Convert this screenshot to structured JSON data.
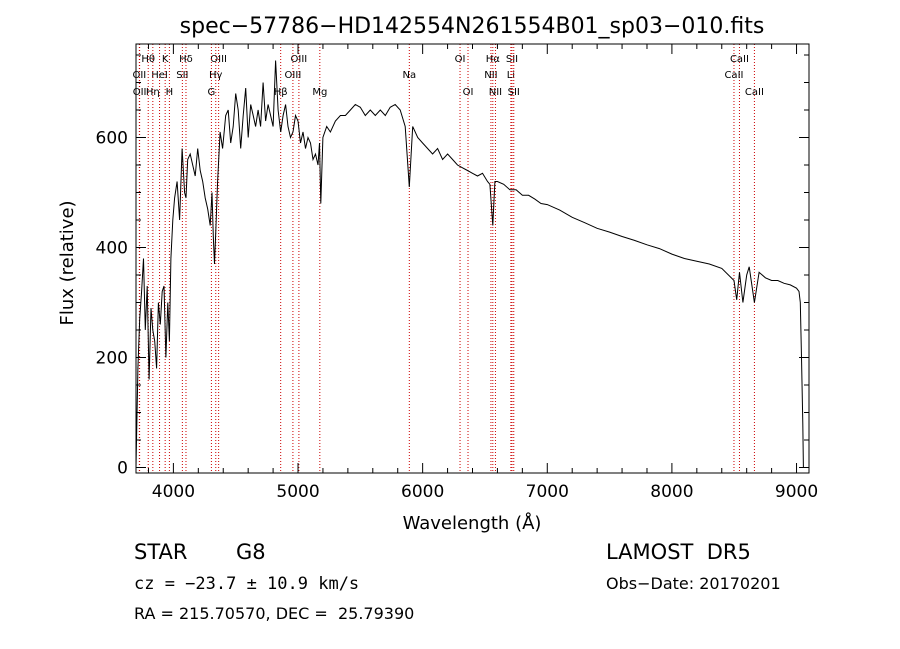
{
  "chart_data": {
    "type": "line",
    "title": "spec−57786−HD142554N261554B01_sp03−010.fits",
    "xlabel": "Wavelength (Å)",
    "ylabel": "Flux (relative)",
    "xlim": [
      3700,
      9100
    ],
    "ylim": [
      -10,
      770
    ],
    "grid": false,
    "xticks": [
      4000,
      5000,
      6000,
      7000,
      8000,
      9000
    ],
    "xtick_labels": [
      "4000",
      "5000",
      "6000",
      "7000",
      "8000",
      "9000"
    ],
    "yticks": [
      0,
      200,
      400,
      600
    ],
    "ytick_labels": [
      "0",
      "200",
      "400",
      "600"
    ],
    "line_color": "#000000",
    "marker_line_color": "#cc0000",
    "series": [
      {
        "x": [
          3700,
          3715,
          3730,
          3745,
          3760,
          3775,
          3790,
          3805,
          3820,
          3835,
          3850,
          3865,
          3880,
          3895,
          3910,
          3925,
          3940,
          3955,
          3968,
          3980,
          3995,
          4010,
          4030,
          4050,
          4070,
          4090,
          4101,
          4115,
          4135,
          4155,
          4175,
          4195,
          4215,
          4235,
          4255,
          4275,
          4295,
          4310,
          4320,
          4330,
          4340,
          4355,
          4375,
          4395,
          4420,
          4440,
          4460,
          4480,
          4500,
          4520,
          4540,
          4560,
          4580,
          4600,
          4620,
          4640,
          4660,
          4680,
          4700,
          4720,
          4740,
          4760,
          4780,
          4800,
          4820,
          4840,
          4861,
          4880,
          4900,
          4920,
          4940,
          4960,
          4980,
          5000,
          5020,
          5040,
          5060,
          5080,
          5100,
          5120,
          5140,
          5160,
          5172,
          5183,
          5200,
          5230,
          5260,
          5300,
          5340,
          5380,
          5420,
          5460,
          5500,
          5540,
          5580,
          5620,
          5660,
          5700,
          5740,
          5780,
          5820,
          5860,
          5893,
          5920,
          5960,
          6000,
          6040,
          6080,
          6120,
          6160,
          6200,
          6240,
          6280,
          6320,
          6360,
          6400,
          6440,
          6480,
          6520,
          6540,
          6563,
          6580,
          6600,
          6650,
          6700,
          6750,
          6800,
          6850,
          6900,
          6950,
          7000,
          7100,
          7200,
          7300,
          7400,
          7500,
          7600,
          7700,
          7800,
          7900,
          8000,
          8100,
          8200,
          8300,
          8400,
          8498,
          8520,
          8542,
          8570,
          8600,
          8620,
          8662,
          8700,
          8750,
          8800,
          8850,
          8900,
          8950,
          9000,
          9020,
          9030,
          9040,
          9050,
          9055
        ],
        "y": [
          0,
          180,
          270,
          320,
          380,
          250,
          330,
          160,
          290,
          250,
          230,
          180,
          300,
          260,
          320,
          330,
          200,
          300,
          230,
          380,
          450,
          490,
          520,
          450,
          580,
          500,
          490,
          560,
          570,
          550,
          530,
          580,
          540,
          520,
          490,
          470,
          440,
          500,
          420,
          370,
          430,
          520,
          610,
          580,
          640,
          650,
          590,
          620,
          680,
          650,
          580,
          640,
          690,
          600,
          660,
          640,
          620,
          650,
          620,
          700,
          630,
          660,
          640,
          620,
          740,
          650,
          610,
          640,
          660,
          620,
          600,
          610,
          640,
          630,
          590,
          610,
          580,
          600,
          590,
          560,
          570,
          550,
          590,
          480,
          600,
          620,
          610,
          630,
          640,
          640,
          650,
          660,
          655,
          640,
          650,
          640,
          650,
          640,
          655,
          660,
          650,
          620,
          510,
          620,
          600,
          590,
          580,
          570,
          580,
          560,
          570,
          560,
          550,
          545,
          540,
          535,
          530,
          535,
          520,
          515,
          440,
          520,
          520,
          515,
          505,
          505,
          495,
          495,
          488,
          480,
          478,
          468,
          455,
          445,
          435,
          428,
          420,
          413,
          405,
          398,
          388,
          380,
          375,
          370,
          362,
          340,
          305,
          355,
          300,
          350,
          365,
          300,
          355,
          345,
          340,
          340,
          335,
          332,
          326,
          320,
          300,
          200,
          80,
          0
        ]
      }
    ],
    "line_markers": [
      {
        "label": "Hθ",
        "x": 3798,
        "row": 1
      },
      {
        "label": "OII",
        "x": 3727,
        "row": 2
      },
      {
        "label": "OII",
        "x": 3729,
        "row": 3
      },
      {
        "label": "K",
        "x": 3934,
        "row": 1
      },
      {
        "label": "HeI",
        "x": 3889,
        "row": 2
      },
      {
        "label": "Hη",
        "x": 3835,
        "row": 3
      },
      {
        "label": "Hδ",
        "x": 4101,
        "row": 1
      },
      {
        "label": "SII",
        "x": 4072,
        "row": 2
      },
      {
        "label": "H",
        "x": 3968,
        "row": 3
      },
      {
        "label": "OIII",
        "x": 4363,
        "row": 1
      },
      {
        "label": "Hγ",
        "x": 4340,
        "row": 2
      },
      {
        "label": "G",
        "x": 4305,
        "row": 3
      },
      {
        "label": "OIII",
        "x": 5007,
        "row": 1
      },
      {
        "label": "OIII",
        "x": 4959,
        "row": 2
      },
      {
        "label": "Hβ",
        "x": 4861,
        "row": 3
      },
      {
        "label": "Mg",
        "x": 5175,
        "row": 3
      },
      {
        "label": "Na",
        "x": 5893,
        "row": 2
      },
      {
        "label": "OI",
        "x": 6300,
        "row": 1
      },
      {
        "label": "OI",
        "x": 6364,
        "row": 3
      },
      {
        "label": "Hα",
        "x": 6563,
        "row": 1
      },
      {
        "label": "NII",
        "x": 6548,
        "row": 2
      },
      {
        "label": "NII",
        "x": 6584,
        "row": 3
      },
      {
        "label": "SII",
        "x": 6717,
        "row": 1
      },
      {
        "label": "Li",
        "x": 6708,
        "row": 2
      },
      {
        "label": "SII",
        "x": 6731,
        "row": 3
      },
      {
        "label": "CaII",
        "x": 8542,
        "row": 1
      },
      {
        "label": "CaII",
        "x": 8498,
        "row": 2
      },
      {
        "label": "CaII",
        "x": 8662,
        "row": 3
      }
    ]
  },
  "info": {
    "object_type": "STAR",
    "spectral_class": "G8",
    "survey": "LAMOST  DR5",
    "redshift": "cz = −23.7 ± 10.9 km/s",
    "obs_date": "Obs−Date: 20170201",
    "coordinates": "RA = 215.70570, DEC =  25.79390"
  }
}
